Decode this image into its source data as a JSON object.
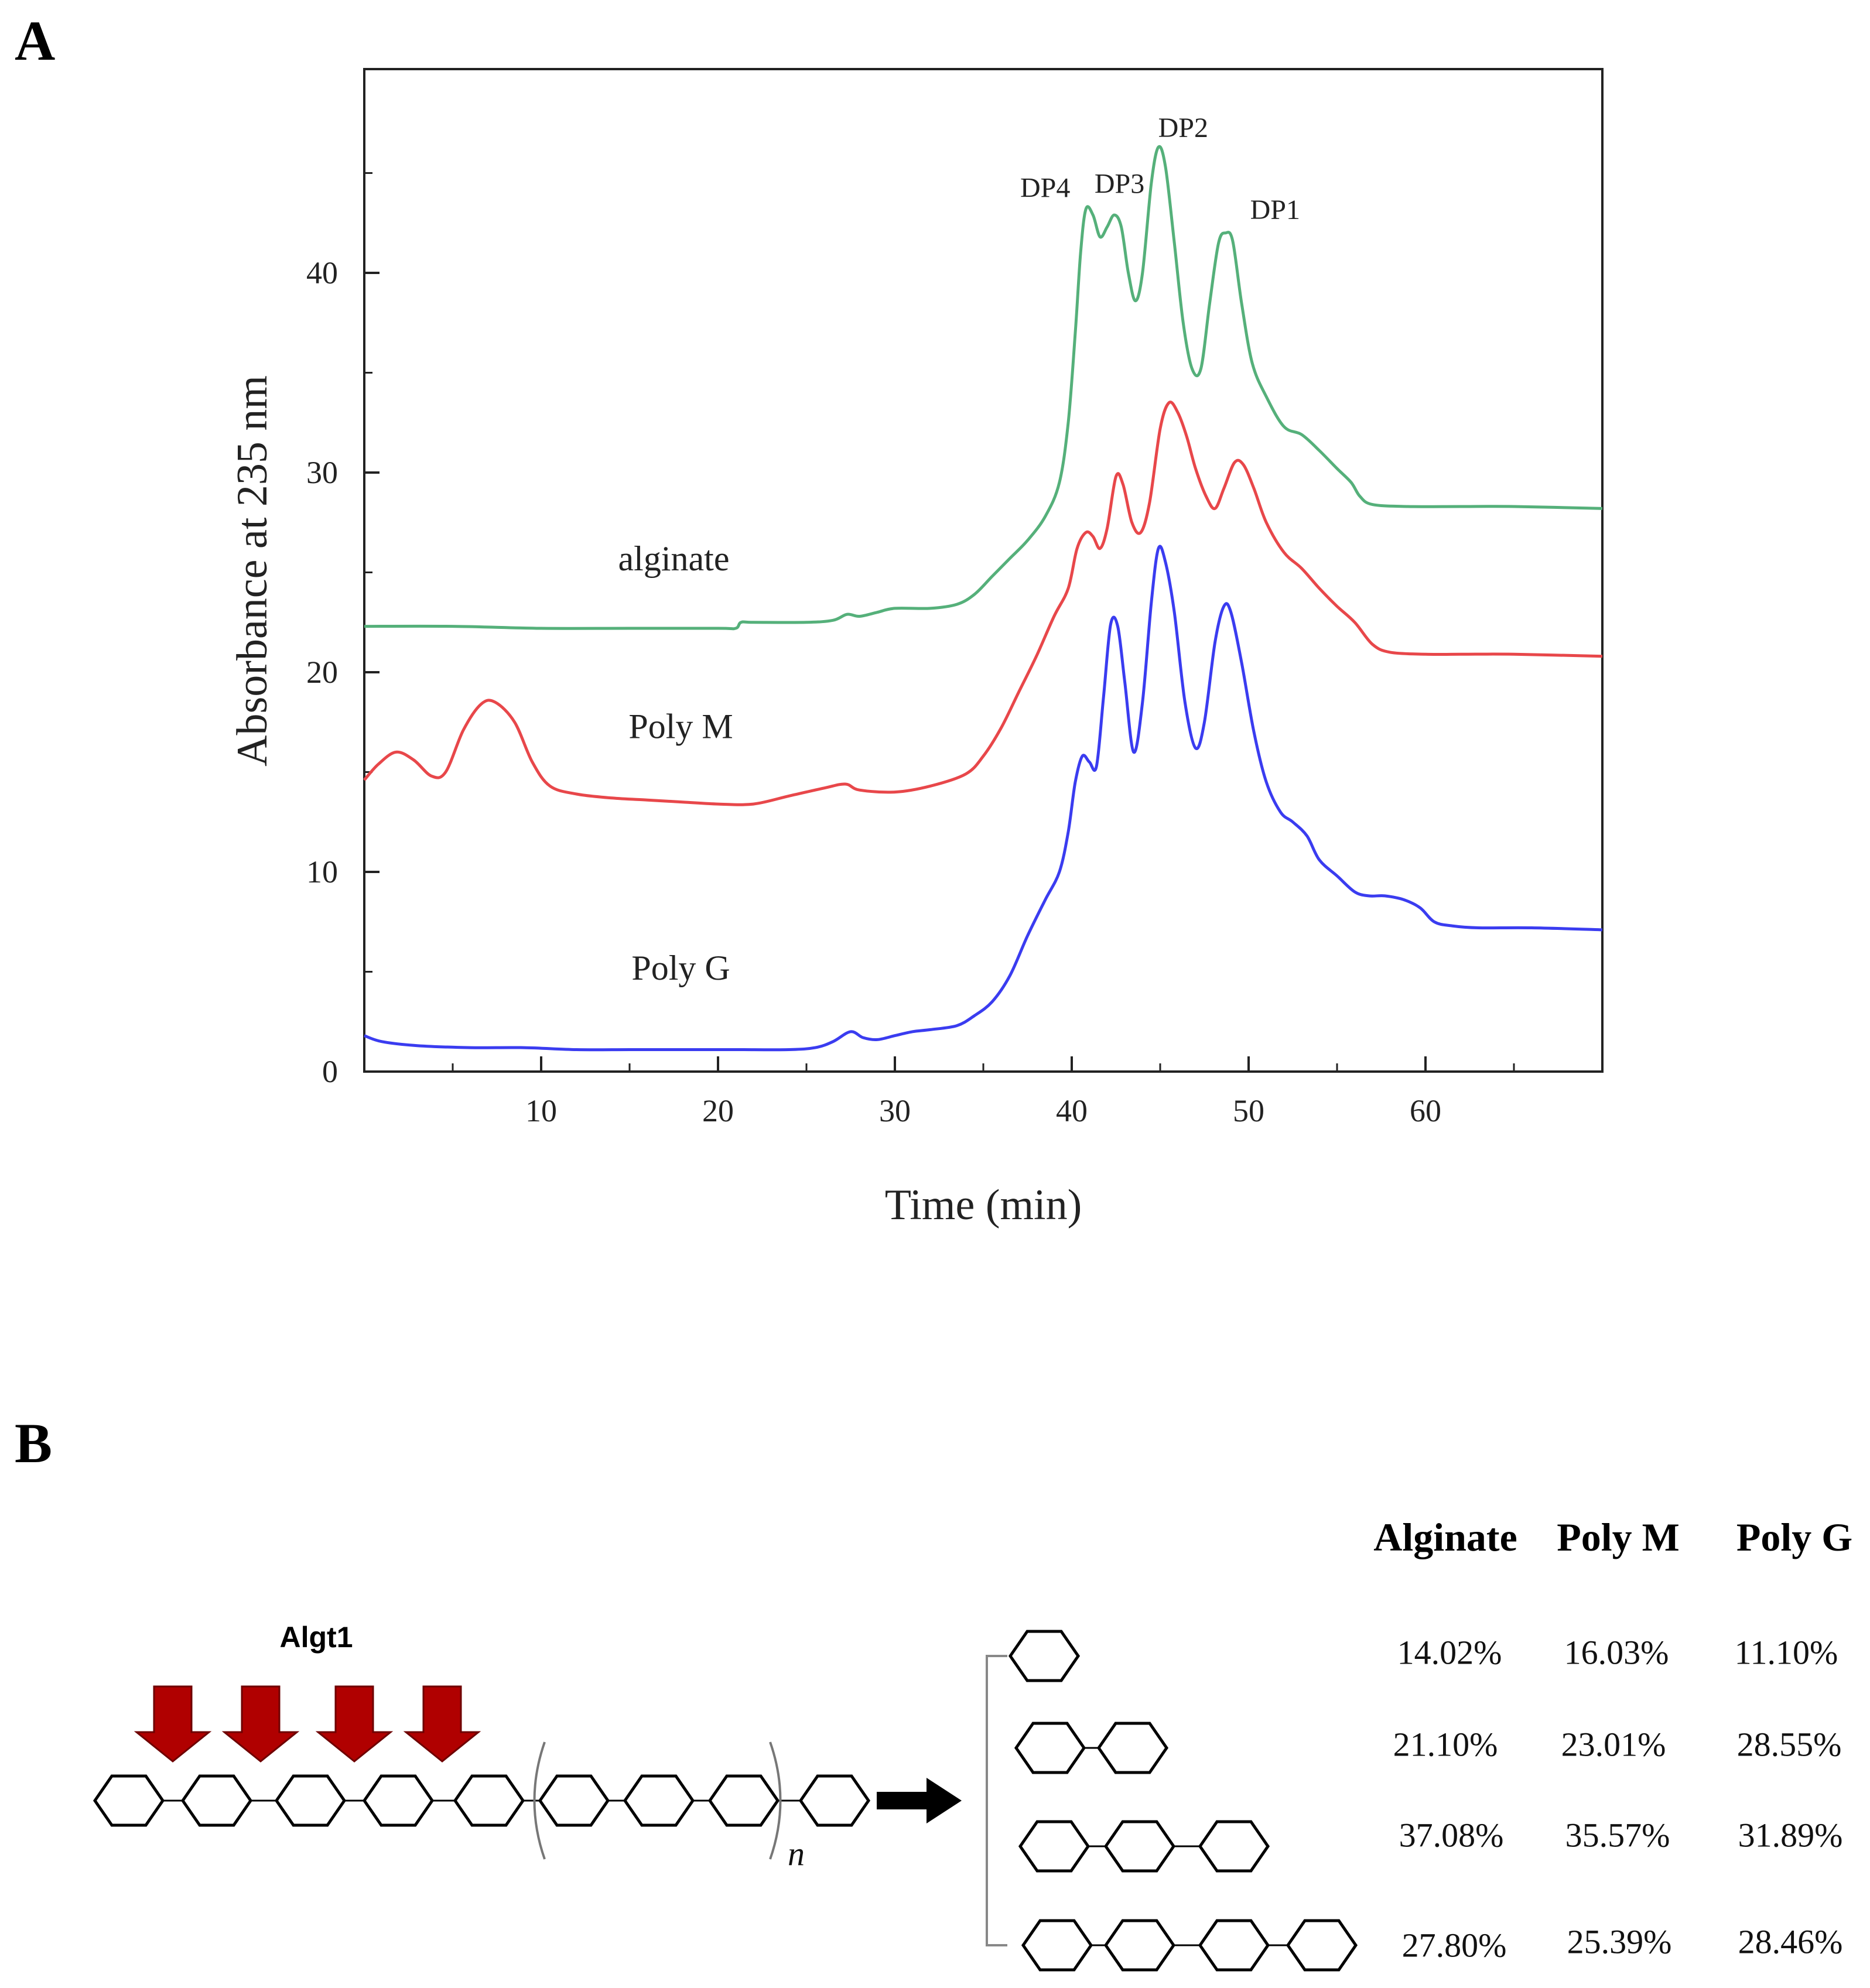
{
  "panels": {
    "a": "A",
    "b": "B"
  },
  "chart_data": {
    "type": "line",
    "title": "",
    "xlabel": "Time (min)",
    "ylabel": "Absorbance at 235 nm",
    "xlim": [
      0,
      70
    ],
    "ylim": [
      0,
      50
    ],
    "xticks": [
      10,
      20,
      30,
      40,
      50,
      60
    ],
    "yticks": [
      0,
      10,
      20,
      30,
      40
    ],
    "grid": false,
    "series": [
      {
        "name": "alginate",
        "color": "#55b07a",
        "points": [
          [
            0,
            22.3
          ],
          [
            5,
            22.3
          ],
          [
            10,
            22.2
          ],
          [
            15,
            22.2
          ],
          [
            20,
            22.2
          ],
          [
            21,
            22.2
          ],
          [
            21.3,
            22.5
          ],
          [
            22,
            22.5
          ],
          [
            25,
            22.5
          ],
          [
            26.5,
            22.6
          ],
          [
            27.3,
            22.9
          ],
          [
            28,
            22.8
          ],
          [
            29,
            23.0
          ],
          [
            30,
            23.2
          ],
          [
            32,
            23.2
          ],
          [
            33.5,
            23.4
          ],
          [
            34.5,
            23.9
          ],
          [
            35.5,
            24.8
          ],
          [
            36.5,
            25.7
          ],
          [
            37.5,
            26.6
          ],
          [
            38.5,
            27.8
          ],
          [
            39.3,
            29.5
          ],
          [
            39.8,
            32.5
          ],
          [
            40.2,
            37
          ],
          [
            40.5,
            41
          ],
          [
            40.8,
            43.2
          ],
          [
            41.2,
            42.9
          ],
          [
            41.6,
            41.8
          ],
          [
            42,
            42.3
          ],
          [
            42.4,
            42.9
          ],
          [
            42.8,
            42.3
          ],
          [
            43.2,
            40
          ],
          [
            43.6,
            38.6
          ],
          [
            44,
            40
          ],
          [
            44.5,
            44.5
          ],
          [
            44.9,
            46.3
          ],
          [
            45.3,
            45.3
          ],
          [
            45.8,
            41.5
          ],
          [
            46.3,
            37.5
          ],
          [
            46.8,
            35.2
          ],
          [
            47.3,
            35.2
          ],
          [
            47.8,
            38.5
          ],
          [
            48.3,
            41.5
          ],
          [
            48.7,
            42.0
          ],
          [
            49.1,
            41.6
          ],
          [
            49.6,
            38.5
          ],
          [
            50.2,
            35.5
          ],
          [
            51,
            33.8
          ],
          [
            52,
            32.3
          ],
          [
            53,
            31.9
          ],
          [
            54,
            31.1
          ],
          [
            55,
            30.2
          ],
          [
            55.8,
            29.5
          ],
          [
            56.3,
            28.8
          ],
          [
            57,
            28.4
          ],
          [
            59,
            28.3
          ],
          [
            62,
            28.3
          ],
          [
            65,
            28.3
          ],
          [
            70,
            28.2
          ]
        ],
        "label_x": 17.5,
        "label_y": 25.1
      },
      {
        "name": "Poly M",
        "color": "#e8474a",
        "points": [
          [
            0,
            14.6
          ],
          [
            0.8,
            15.4
          ],
          [
            1.8,
            16.0
          ],
          [
            2.8,
            15.6
          ],
          [
            3.8,
            14.8
          ],
          [
            4.6,
            15.0
          ],
          [
            5.6,
            17.1
          ],
          [
            6.6,
            18.4
          ],
          [
            7.4,
            18.5
          ],
          [
            8.5,
            17.5
          ],
          [
            9.5,
            15.5
          ],
          [
            10.5,
            14.3
          ],
          [
            12,
            13.9
          ],
          [
            14,
            13.7
          ],
          [
            16,
            13.6
          ],
          [
            18,
            13.5
          ],
          [
            20,
            13.4
          ],
          [
            22,
            13.4
          ],
          [
            24,
            13.8
          ],
          [
            26,
            14.2
          ],
          [
            27.2,
            14.4
          ],
          [
            28,
            14.1
          ],
          [
            30,
            14.0
          ],
          [
            32,
            14.3
          ],
          [
            34,
            14.9
          ],
          [
            35,
            15.8
          ],
          [
            36,
            17.2
          ],
          [
            37,
            19.0
          ],
          [
            38,
            20.8
          ],
          [
            39,
            22.8
          ],
          [
            39.8,
            24.2
          ],
          [
            40.3,
            26.2
          ],
          [
            40.8,
            27.0
          ],
          [
            41.2,
            26.8
          ],
          [
            41.6,
            26.2
          ],
          [
            42,
            27.2
          ],
          [
            42.5,
            29.8
          ],
          [
            42.9,
            29.4
          ],
          [
            43.4,
            27.5
          ],
          [
            43.9,
            27.0
          ],
          [
            44.4,
            28.5
          ],
          [
            45,
            32.2
          ],
          [
            45.5,
            33.5
          ],
          [
            46,
            33.0
          ],
          [
            46.5,
            31.8
          ],
          [
            47,
            30.2
          ],
          [
            47.6,
            28.8
          ],
          [
            48.1,
            28.2
          ],
          [
            48.6,
            29.2
          ],
          [
            49.2,
            30.5
          ],
          [
            49.7,
            30.4
          ],
          [
            50.3,
            29.2
          ],
          [
            51,
            27.5
          ],
          [
            52,
            26.0
          ],
          [
            53,
            25.2
          ],
          [
            54,
            24.2
          ],
          [
            55,
            23.3
          ],
          [
            56,
            22.5
          ],
          [
            57,
            21.4
          ],
          [
            58,
            21.0
          ],
          [
            60,
            20.9
          ],
          [
            62,
            20.9
          ],
          [
            65,
            20.9
          ],
          [
            70,
            20.8
          ]
        ],
        "label_x": 17.9,
        "label_y": 16.7
      },
      {
        "name": "Poly G",
        "color": "#3a3cf0",
        "points": [
          [
            0,
            1.8
          ],
          [
            1,
            1.5
          ],
          [
            3,
            1.3
          ],
          [
            6,
            1.2
          ],
          [
            9,
            1.2
          ],
          [
            12,
            1.1
          ],
          [
            15,
            1.1
          ],
          [
            18,
            1.1
          ],
          [
            21,
            1.1
          ],
          [
            24,
            1.1
          ],
          [
            25.5,
            1.2
          ],
          [
            26.5,
            1.5
          ],
          [
            27.5,
            2.0
          ],
          [
            28.2,
            1.7
          ],
          [
            29,
            1.6
          ],
          [
            30,
            1.8
          ],
          [
            31,
            2.0
          ],
          [
            32,
            2.1
          ],
          [
            33.5,
            2.3
          ],
          [
            34.5,
            2.8
          ],
          [
            35.5,
            3.5
          ],
          [
            36.5,
            4.8
          ],
          [
            37.5,
            6.8
          ],
          [
            38.5,
            8.6
          ],
          [
            39.3,
            10.0
          ],
          [
            39.8,
            12.0
          ],
          [
            40.2,
            14.5
          ],
          [
            40.6,
            15.8
          ],
          [
            41,
            15.5
          ],
          [
            41.4,
            15.3
          ],
          [
            41.8,
            18.8
          ],
          [
            42.2,
            22.4
          ],
          [
            42.6,
            22.3
          ],
          [
            43,
            19.5
          ],
          [
            43.5,
            16.0
          ],
          [
            44,
            18.5
          ],
          [
            44.5,
            23.5
          ],
          [
            44.9,
            26.2
          ],
          [
            45.3,
            25.5
          ],
          [
            45.8,
            23.0
          ],
          [
            46.4,
            18.5
          ],
          [
            47,
            16.2
          ],
          [
            47.5,
            17.5
          ],
          [
            48.1,
            21.5
          ],
          [
            48.6,
            23.3
          ],
          [
            49,
            23.0
          ],
          [
            49.6,
            20.5
          ],
          [
            50.3,
            17.0
          ],
          [
            51,
            14.5
          ],
          [
            51.8,
            13.0
          ],
          [
            52.5,
            12.5
          ],
          [
            53.3,
            11.8
          ],
          [
            54,
            10.6
          ],
          [
            55,
            9.8
          ],
          [
            56,
            9.0
          ],
          [
            56.8,
            8.8
          ],
          [
            57.7,
            8.8
          ],
          [
            58.8,
            8.6
          ],
          [
            59.7,
            8.2
          ],
          [
            60.5,
            7.5
          ],
          [
            61.5,
            7.3
          ],
          [
            63,
            7.2
          ],
          [
            66,
            7.2
          ],
          [
            70,
            7.1
          ]
        ],
        "label_x": 17.9,
        "label_y": 4.6
      }
    ],
    "annotations": [
      {
        "text": "DP4",
        "x": 38.5,
        "y": 43.8
      },
      {
        "text": "DP3",
        "x": 42.7,
        "y": 44.0
      },
      {
        "text": "DP2",
        "x": 46.3,
        "y": 46.8
      },
      {
        "text": "DP1",
        "x": 51.5,
        "y": 42.7
      }
    ]
  },
  "scheme": {
    "enzyme": "Algt1",
    "repeat_subscript": "n",
    "table": {
      "headers": [
        "Alginate",
        "Poly M",
        "Poly G"
      ],
      "rows": [
        {
          "dp": 1,
          "values": [
            "14.02%",
            "16.03%",
            "11.10%"
          ]
        },
        {
          "dp": 2,
          "values": [
            "21.10%",
            "23.01%",
            "28.55%"
          ]
        },
        {
          "dp": 3,
          "values": [
            "37.08%",
            "35.57%",
            "31.89%"
          ]
        },
        {
          "dp": 4,
          "values": [
            "27.80%",
            "25.39%",
            "28.46%"
          ]
        }
      ]
    },
    "arrow_color": "#b00000"
  }
}
